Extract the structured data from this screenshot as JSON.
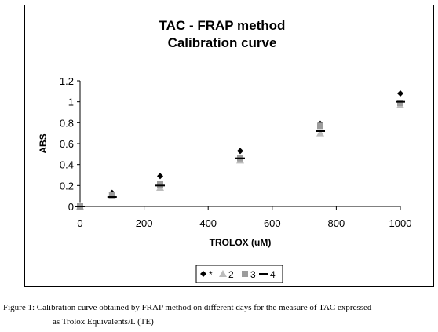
{
  "chart_data": {
    "type": "scatter",
    "title": [
      "TAC - FRAP method",
      "Calibration curve"
    ],
    "xlabel": "TROLOX (uM)",
    "ylabel": "ABS",
    "xlim": [
      0,
      1000
    ],
    "ylim": [
      0,
      1.2
    ],
    "xticks": [
      0,
      200,
      400,
      600,
      800,
      1000
    ],
    "yticks": [
      0,
      0.2,
      0.4,
      0.6,
      0.8,
      1,
      1.2
    ],
    "xtick_labels": [
      "0",
      "200",
      "400",
      "600",
      "800",
      "1000"
    ],
    "ytick_labels": [
      "0",
      "0.2",
      "0.4",
      "0.6",
      "0.8",
      "1",
      "1.2"
    ],
    "grid": false,
    "legend_position": "bottom",
    "series": [
      {
        "name": "*",
        "marker": "diamond",
        "color": "#000000",
        "x": [
          0,
          100,
          250,
          500,
          750,
          1000
        ],
        "y": [
          0.0,
          0.13,
          0.29,
          0.53,
          0.79,
          1.08
        ]
      },
      {
        "name": "2",
        "marker": "triangle",
        "color": "#bdbdbd",
        "x": [
          0,
          100,
          250,
          500,
          750,
          1000
        ],
        "y": [
          0.0,
          0.1,
          0.18,
          0.44,
          0.7,
          0.97
        ]
      },
      {
        "name": "3",
        "marker": "square",
        "color": "#9c9c9c",
        "x": [
          0,
          100,
          250,
          500,
          750,
          1000
        ],
        "y": [
          0.0,
          0.11,
          0.21,
          0.46,
          0.77,
          0.99
        ]
      },
      {
        "name": "4",
        "marker": "dash",
        "color": "#000000",
        "x": [
          0,
          100,
          250,
          500,
          750,
          1000
        ],
        "y": [
          0.0,
          0.09,
          0.2,
          0.46,
          0.72,
          1.0
        ]
      }
    ]
  },
  "caption": {
    "line1": "Figure 1: Calibration curve obtained by FRAP method on different days for the measure of TAC expressed",
    "line2": "as Trolox Equivalents/L (TE)"
  }
}
